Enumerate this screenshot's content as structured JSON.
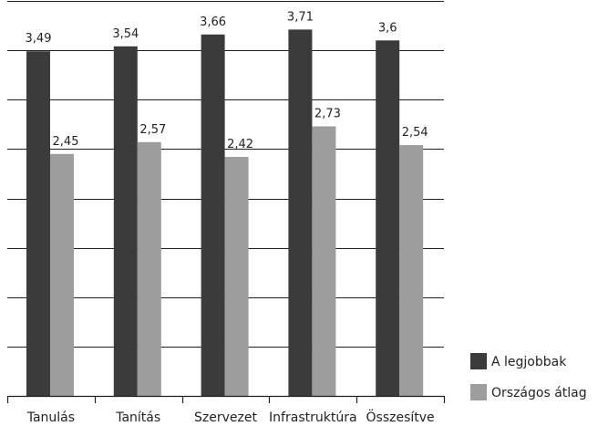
{
  "chart_data": {
    "type": "bar",
    "categories": [
      "Tanulás",
      "Tanítás",
      "Szervezet",
      "Infrastruktúra",
      "Összesítve"
    ],
    "series": [
      {
        "name": "A legjobbak",
        "color": "#3b3b3b",
        "values": [
          3.49,
          3.54,
          3.66,
          3.71,
          3.6
        ],
        "labels": [
          "3,49",
          "3,54",
          "3,66",
          "3,71",
          "3,6"
        ]
      },
      {
        "name": "Országos átlag",
        "color": "#9d9d9d",
        "values": [
          2.45,
          2.57,
          2.42,
          2.73,
          2.54
        ],
        "labels": [
          "2,45",
          "2,57",
          "2,42",
          "2,73",
          "2,54"
        ]
      }
    ],
    "ylim": [
      0,
      4
    ],
    "y_gridline_step": 0.5,
    "y_tick_labels_shown": false,
    "grid": true,
    "legend_position": "bottom-right"
  }
}
